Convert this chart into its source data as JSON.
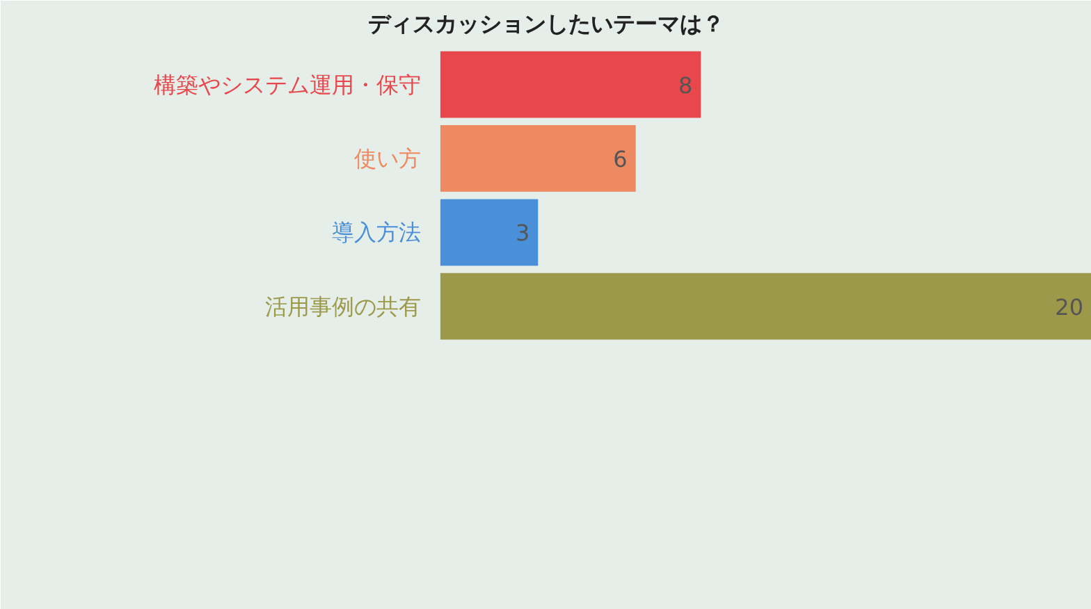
{
  "chart_data": {
    "type": "bar",
    "orientation": "horizontal",
    "title": "ディスカッションしたいテーマは？",
    "categories": [
      "構築やシステム運用・保守",
      "使い方",
      "導入方法",
      "活用事例の共有"
    ],
    "values": [
      8,
      6,
      3,
      20
    ],
    "colors": [
      "#e8474b",
      "#ee8a62",
      "#4a90d9",
      "#9c9a4a"
    ],
    "data_labels": true
  }
}
